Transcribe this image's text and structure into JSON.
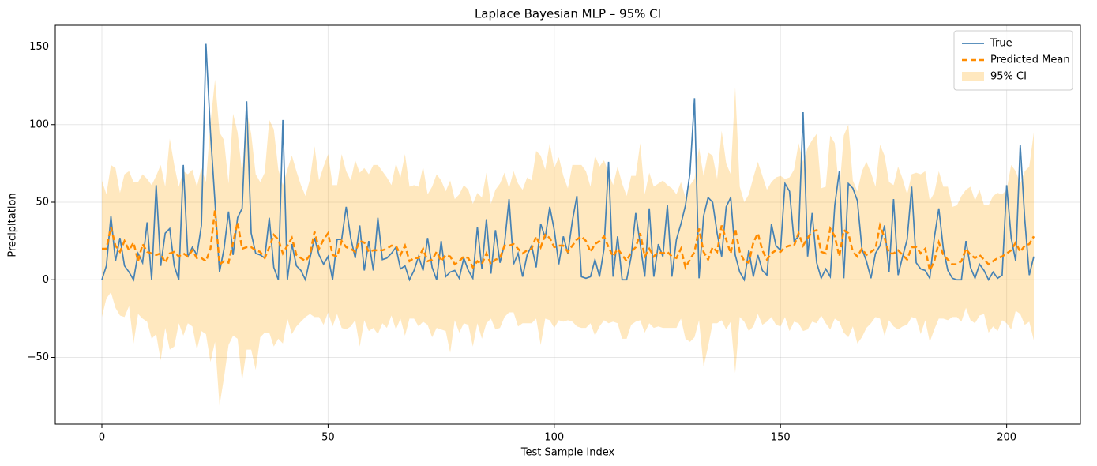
{
  "chart_data": {
    "type": "line",
    "title": "Laplace Bayesian MLP – 95% CI",
    "xlabel": "Test Sample Index",
    "ylabel": "Precipitation",
    "xlim": [
      -10.3,
      216.3
    ],
    "ylim": [
      -93,
      164
    ],
    "xticks": [
      0,
      50,
      100,
      150,
      200
    ],
    "yticks": [
      {
        "value": -50,
        "label": "−50"
      },
      0,
      50,
      100,
      150
    ],
    "grid": true,
    "legend": "upper right",
    "x": [
      0,
      1,
      2,
      3,
      4,
      5,
      6,
      7,
      8,
      9,
      10,
      11,
      12,
      13,
      14,
      15,
      16,
      17,
      18,
      19,
      20,
      21,
      22,
      23,
      24,
      25,
      26,
      27,
      28,
      29,
      30,
      31,
      32,
      33,
      34,
      35,
      36,
      37,
      38,
      39,
      40,
      41,
      42,
      43,
      44,
      45,
      46,
      47,
      48,
      49,
      50,
      51,
      52,
      53,
      54,
      55,
      56,
      57,
      58,
      59,
      60,
      61,
      62,
      63,
      64,
      65,
      66,
      67,
      68,
      69,
      70,
      71,
      72,
      73,
      74,
      75,
      76,
      77,
      78,
      79,
      80,
      81,
      82,
      83,
      84,
      85,
      86,
      87,
      88,
      89,
      90,
      91,
      92,
      93,
      94,
      95,
      96,
      97,
      98,
      99,
      100,
      101,
      102,
      103,
      104,
      105,
      106,
      107,
      108,
      109,
      110,
      111,
      112,
      113,
      114,
      115,
      116,
      117,
      118,
      119,
      120,
      121,
      122,
      123,
      124,
      125,
      126,
      127,
      128,
      129,
      130,
      131,
      132,
      133,
      134,
      135,
      136,
      137,
      138,
      139,
      140,
      141,
      142,
      143,
      144,
      145,
      146,
      147,
      148,
      149,
      150,
      151,
      152,
      153,
      154,
      155,
      156,
      157,
      158,
      159,
      160,
      161,
      162,
      163,
      164,
      165,
      166,
      167,
      168,
      169,
      170,
      171,
      172,
      173,
      174,
      175,
      176,
      177,
      178,
      179,
      180,
      181,
      182,
      183,
      184,
      185,
      186,
      187,
      188,
      189,
      190,
      191,
      192,
      193,
      194,
      195,
      196,
      197,
      198,
      199,
      200,
      201,
      202,
      203,
      204,
      205,
      206
    ],
    "series": [
      {
        "name": "True",
        "color": "#4682b4",
        "values": [
          0,
          9,
          41,
          12,
          27,
          9,
          5,
          0,
          17,
          11,
          37,
          0,
          61,
          9,
          30,
          33,
          9,
          0,
          74,
          15,
          21,
          16,
          35,
          152,
          95,
          50,
          5,
          20,
          44,
          16,
          40,
          46,
          115,
          30,
          17,
          16,
          14,
          40,
          8,
          0,
          103,
          0,
          23,
          9,
          6,
          0,
          14,
          27,
          16,
          10,
          15,
          0,
          26,
          26,
          47,
          27,
          14,
          35,
          6,
          25,
          6,
          40,
          13,
          14,
          17,
          21,
          7,
          9,
          0,
          6,
          15,
          6,
          27,
          8,
          0,
          25,
          2,
          5,
          6,
          1,
          14,
          6,
          1,
          34,
          7,
          39,
          4,
          32,
          11,
          23,
          52,
          10,
          17,
          2,
          16,
          22,
          8,
          36,
          27,
          47,
          32,
          10,
          28,
          17,
          38,
          54,
          2,
          1,
          2,
          13,
          2,
          20,
          76,
          2,
          28,
          0,
          0,
          15,
          43,
          23,
          2,
          46,
          2,
          23,
          15,
          48,
          2,
          26,
          36,
          48,
          69,
          117,
          1,
          41,
          53,
          50,
          30,
          15,
          47,
          53,
          16,
          5,
          0,
          19,
          2,
          16,
          6,
          3,
          36,
          22,
          19,
          62,
          57,
          25,
          28,
          108,
          15,
          43,
          11,
          1,
          7,
          2,
          48,
          70,
          1,
          62,
          59,
          51,
          20,
          12,
          1,
          17,
          22,
          35,
          5,
          52,
          3,
          15,
          26,
          60,
          11,
          7,
          6,
          1,
          27,
          46,
          20,
          6,
          1,
          0,
          0,
          25,
          8,
          1,
          10,
          6,
          0,
          5,
          1,
          3,
          61,
          27,
          12,
          87,
          39,
          3,
          15
        ]
      },
      {
        "name": "Predicted Mean",
        "color": "#ff8c00",
        "dashed": true,
        "values": [
          20,
          20,
          34,
          22,
          18,
          25,
          19,
          24,
          12,
          23,
          18,
          17,
          16,
          17,
          11,
          17,
          18,
          15,
          17,
          15,
          19,
          14,
          14,
          12,
          20,
          45,
          10,
          12,
          11,
          24,
          37,
          20,
          21,
          21,
          19,
          18,
          14,
          21,
          29,
          26,
          17,
          22,
          27,
          16,
          14,
          12,
          16,
          31,
          20,
          26,
          30,
          16,
          15,
          25,
          21,
          20,
          18,
          25,
          24,
          18,
          19,
          19,
          19,
          20,
          22,
          22,
          16,
          22,
          12,
          14,
          14,
          20,
          12,
          13,
          18,
          12,
          16,
          15,
          10,
          12,
          15,
          14,
          8,
          12,
          10,
          17,
          10,
          13,
          14,
          22,
          22,
          23,
          20,
          17,
          19,
          20,
          28,
          21,
          29,
          27,
          21,
          22,
          22,
          18,
          22,
          26,
          28,
          25,
          18,
          23,
          25,
          28,
          21,
          15,
          20,
          16,
          12,
          18,
          21,
          30,
          15,
          20,
          15,
          18,
          17,
          18,
          15,
          14,
          20,
          8,
          13,
          18,
          33,
          18,
          13,
          21,
          18,
          35,
          26,
          17,
          33,
          18,
          12,
          11,
          24,
          30,
          19,
          13,
          17,
          19,
          18,
          21,
          22,
          22,
          30,
          22,
          27,
          31,
          32,
          18,
          17,
          33,
          28,
          15,
          32,
          30,
          18,
          15,
          20,
          16,
          18,
          20,
          35,
          27,
          17,
          17,
          19,
          16,
          13,
          21,
          21,
          17,
          20,
          6,
          12,
          24,
          16,
          13,
          10,
          10,
          12,
          20,
          16,
          14,
          16,
          13,
          10,
          12,
          14,
          15,
          17,
          19,
          24,
          18,
          22,
          23,
          28
        ]
      },
      {
        "name": "95% CI",
        "color": "#ffa500",
        "alpha": 0.25,
        "upper": [
          64,
          55,
          74,
          72,
          56,
          68,
          70,
          63,
          63,
          68,
          65,
          61,
          67,
          74,
          60,
          91,
          74,
          60,
          70,
          68,
          71,
          60,
          72,
          63,
          101,
          129,
          95,
          90,
          62,
          107,
          95,
          69,
          109,
          94,
          68,
          63,
          69,
          103,
          97,
          71,
          61,
          71,
          80,
          70,
          61,
          54,
          65,
          86,
          64,
          73,
          81,
          61,
          61,
          81,
          70,
          64,
          77,
          69,
          72,
          68,
          74,
          74,
          70,
          66,
          61,
          75,
          66,
          81,
          60,
          61,
          60,
          73,
          55,
          60,
          68,
          64,
          57,
          64,
          52,
          55,
          61,
          58,
          49,
          56,
          53,
          69,
          49,
          58,
          62,
          69,
          59,
          70,
          62,
          58,
          66,
          64,
          83,
          80,
          71,
          88,
          72,
          79,
          67,
          59,
          74,
          74,
          74,
          70,
          60,
          80,
          73,
          77,
          69,
          61,
          73,
          62,
          54,
          67,
          67,
          88,
          55,
          69,
          60,
          62,
          64,
          61,
          59,
          55,
          63,
          53,
          61,
          65,
          85,
          67,
          82,
          80,
          65,
          96,
          75,
          68,
          124,
          60,
          50,
          55,
          66,
          76,
          67,
          58,
          63,
          66,
          67,
          65,
          66,
          71,
          88,
          76,
          85,
          90,
          94,
          59,
          60,
          93,
          88,
          57,
          93,
          100,
          64,
          57,
          70,
          76,
          69,
          60,
          87,
          80,
          63,
          61,
          73,
          65,
          55,
          68,
          69,
          68,
          70,
          51,
          56,
          70,
          60,
          60,
          47,
          48,
          54,
          58,
          60,
          51,
          58,
          48,
          48,
          54,
          56,
          55,
          58,
          74,
          70,
          62,
          70,
          73,
          95
        ],
        "lower": [
          -24,
          -12,
          -8,
          -18,
          -23,
          -24,
          -17,
          -41,
          -22,
          -25,
          -27,
          -38,
          -35,
          -52,
          -31,
          -45,
          -43,
          -28,
          -36,
          -28,
          -30,
          -45,
          -33,
          -35,
          -53,
          -40,
          -81,
          -63,
          -42,
          -36,
          -38,
          -65,
          -45,
          -45,
          -58,
          -37,
          -34,
          -34,
          -43,
          -38,
          -41,
          -25,
          -35,
          -30,
          -27,
          -24,
          -22,
          -24,
          -24,
          -29,
          -21,
          -30,
          -22,
          -31,
          -32,
          -30,
          -26,
          -43,
          -26,
          -33,
          -31,
          -35,
          -28,
          -31,
          -23,
          -32,
          -25,
          -36,
          -25,
          -25,
          -30,
          -27,
          -29,
          -37,
          -31,
          -32,
          -33,
          -47,
          -26,
          -34,
          -28,
          -29,
          -43,
          -28,
          -38,
          -28,
          -25,
          -32,
          -31,
          -24,
          -21,
          -21,
          -30,
          -28,
          -28,
          -28,
          -25,
          -42,
          -25,
          -26,
          -31,
          -26,
          -27,
          -26,
          -27,
          -30,
          -31,
          -31,
          -28,
          -36,
          -30,
          -26,
          -28,
          -27,
          -28,
          -38,
          -38,
          -29,
          -27,
          -26,
          -34,
          -28,
          -31,
          -30,
          -31,
          -31,
          -31,
          -31,
          -25,
          -38,
          -40,
          -37,
          -26,
          -56,
          -43,
          -28,
          -28,
          -26,
          -32,
          -27,
          -60,
          -24,
          -27,
          -33,
          -30,
          -22,
          -29,
          -27,
          -24,
          -29,
          -30,
          -24,
          -33,
          -27,
          -28,
          -33,
          -32,
          -27,
          -28,
          -23,
          -28,
          -32,
          -25,
          -27,
          -34,
          -37,
          -30,
          -41,
          -37,
          -31,
          -28,
          -24,
          -25,
          -36,
          -26,
          -30,
          -32,
          -30,
          -29,
          -24,
          -25,
          -35,
          -26,
          -40,
          -32,
          -25,
          -25,
          -26,
          -24,
          -24,
          -27,
          -18,
          -26,
          -28,
          -23,
          -22,
          -34,
          -30,
          -33,
          -26,
          -28,
          -32,
          -20,
          -22,
          -29,
          -27,
          -39
        ]
      }
    ]
  }
}
